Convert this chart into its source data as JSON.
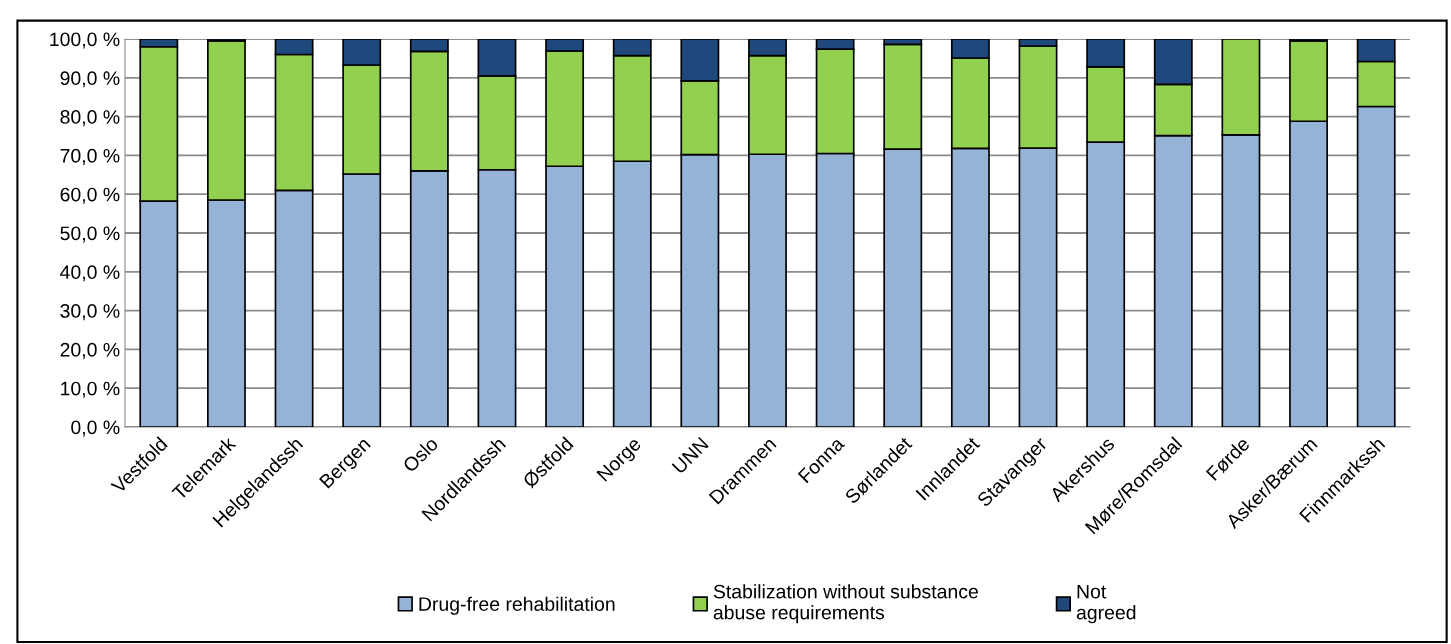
{
  "chart_data": {
    "type": "bar",
    "stacked": true,
    "categories": [
      "Vestfold",
      "Telemark",
      "Helgelandssh",
      "Bergen",
      "Oslo",
      "Nordlandssh",
      "Østfold",
      "Norge",
      "UNN",
      "Drammen",
      "Fonna",
      "Sørlandet",
      "Innlandet",
      "Stavanger",
      "Akershus",
      "Møre/Romsdal",
      "Førde",
      "Asker/Bærum",
      "Finnmarkssh"
    ],
    "series": [
      {
        "name": "Drug-free rehabilitation",
        "color": "#95b3d7",
        "values": [
          58.2,
          58.5,
          61.0,
          65.2,
          66.0,
          66.3,
          67.2,
          68.5,
          70.2,
          70.3,
          70.5,
          71.6,
          71.8,
          71.9,
          73.4,
          75.1,
          75.3,
          78.8,
          82.6
        ]
      },
      {
        "name": "Stabilization without substance\nabuse requirements",
        "color": "#92d050",
        "values": [
          39.8,
          41.0,
          35.0,
          28.1,
          30.8,
          24.2,
          29.7,
          27.2,
          19.0,
          25.4,
          26.9,
          27.0,
          23.3,
          26.3,
          19.4,
          13.2,
          24.7,
          20.7,
          11.6
        ]
      },
      {
        "name": "Not\nagreed",
        "color": "#1f497d",
        "values": [
          2.0,
          0.5,
          4.0,
          6.7,
          3.2,
          9.5,
          3.1,
          4.3,
          10.8,
          4.3,
          2.6,
          1.4,
          4.9,
          1.8,
          7.2,
          11.7,
          null,
          0.5,
          5.8
        ]
      }
    ],
    "ylim": [
      0,
      100
    ],
    "yticks": [
      {
        "value": 0,
        "label": "0,0 %"
      },
      {
        "value": 10,
        "label": "10,0 %"
      },
      {
        "value": 20,
        "label": "20,0 %"
      },
      {
        "value": 30,
        "label": "30,0 %"
      },
      {
        "value": 40,
        "label": "40,0 %"
      },
      {
        "value": 50,
        "label": "50,0 %"
      },
      {
        "value": 60,
        "label": "60,0 %"
      },
      {
        "value": 70,
        "label": "70,0 %"
      },
      {
        "value": 80,
        "label": "80,0 %"
      },
      {
        "value": 90,
        "label": "90,0 %"
      },
      {
        "value": 100,
        "label": "100,0 %"
      }
    ],
    "grid": "y",
    "legend": "bottom"
  }
}
